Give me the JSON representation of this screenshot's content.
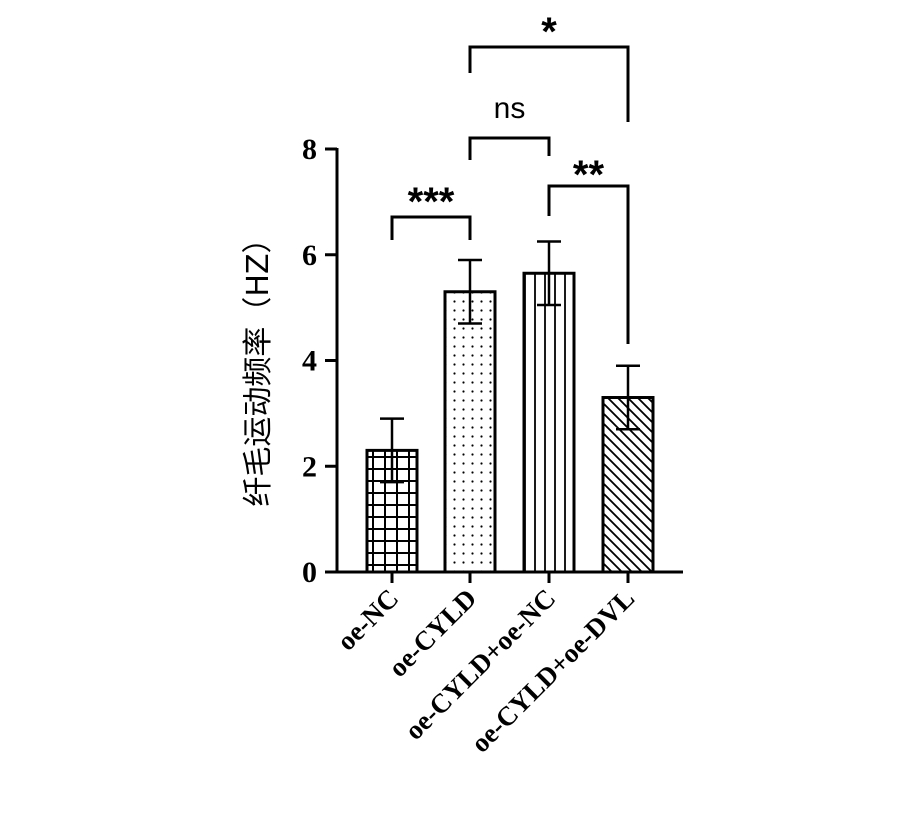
{
  "chart_data": {
    "type": "bar",
    "categories": [
      "oe-NC",
      "oe-CYLD",
      "oe-CYLD+oe-NC",
      "oe-CYLD+oe-DVL"
    ],
    "values": [
      2.3,
      5.3,
      5.65,
      3.3
    ],
    "errors": [
      0.6,
      0.6,
      0.6,
      0.6
    ],
    "patterns": [
      "grid",
      "dots",
      "vertical-lines",
      "diagonal-lines"
    ],
    "ylabel": "纤毛运动频率（HZ）",
    "xlabel": "",
    "ylim": [
      0,
      8
    ],
    "yticks": [
      "0",
      "2",
      "4",
      "6",
      "8"
    ],
    "grid": false,
    "significance": [
      {
        "from": 0,
        "to": 1,
        "label": "***"
      },
      {
        "from": 1,
        "to": 2,
        "label": "ns"
      },
      {
        "from": 2,
        "to": 3,
        "label": "**"
      },
      {
        "from": 1,
        "to": 3,
        "label": "*"
      }
    ],
    "colors": {
      "bar_fill": "#ffffff",
      "stroke": "#000000"
    }
  }
}
